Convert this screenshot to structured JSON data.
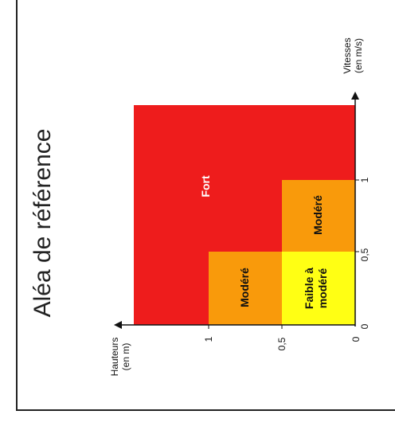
{
  "title": "Aléa de référence",
  "axes": {
    "y_label_line1": "Vitesses",
    "y_label_line2": "(en m/s)",
    "x_label_line1": "Hauteurs",
    "x_label_line2": "(en m)"
  },
  "ticks": {
    "vitesse": [
      "0",
      "0,5",
      "1"
    ],
    "hauteur": [
      "0",
      "0,5",
      "1"
    ]
  },
  "zones": {
    "fort": "Fort",
    "modere_top": "Modéré",
    "modere_left": "Modéré",
    "faible_line1": "Faible à",
    "faible_line2": "modéré"
  },
  "colors": {
    "fort": "#ee1c1c",
    "modere": "#f99a0b",
    "faible": "#ffff14"
  }
}
